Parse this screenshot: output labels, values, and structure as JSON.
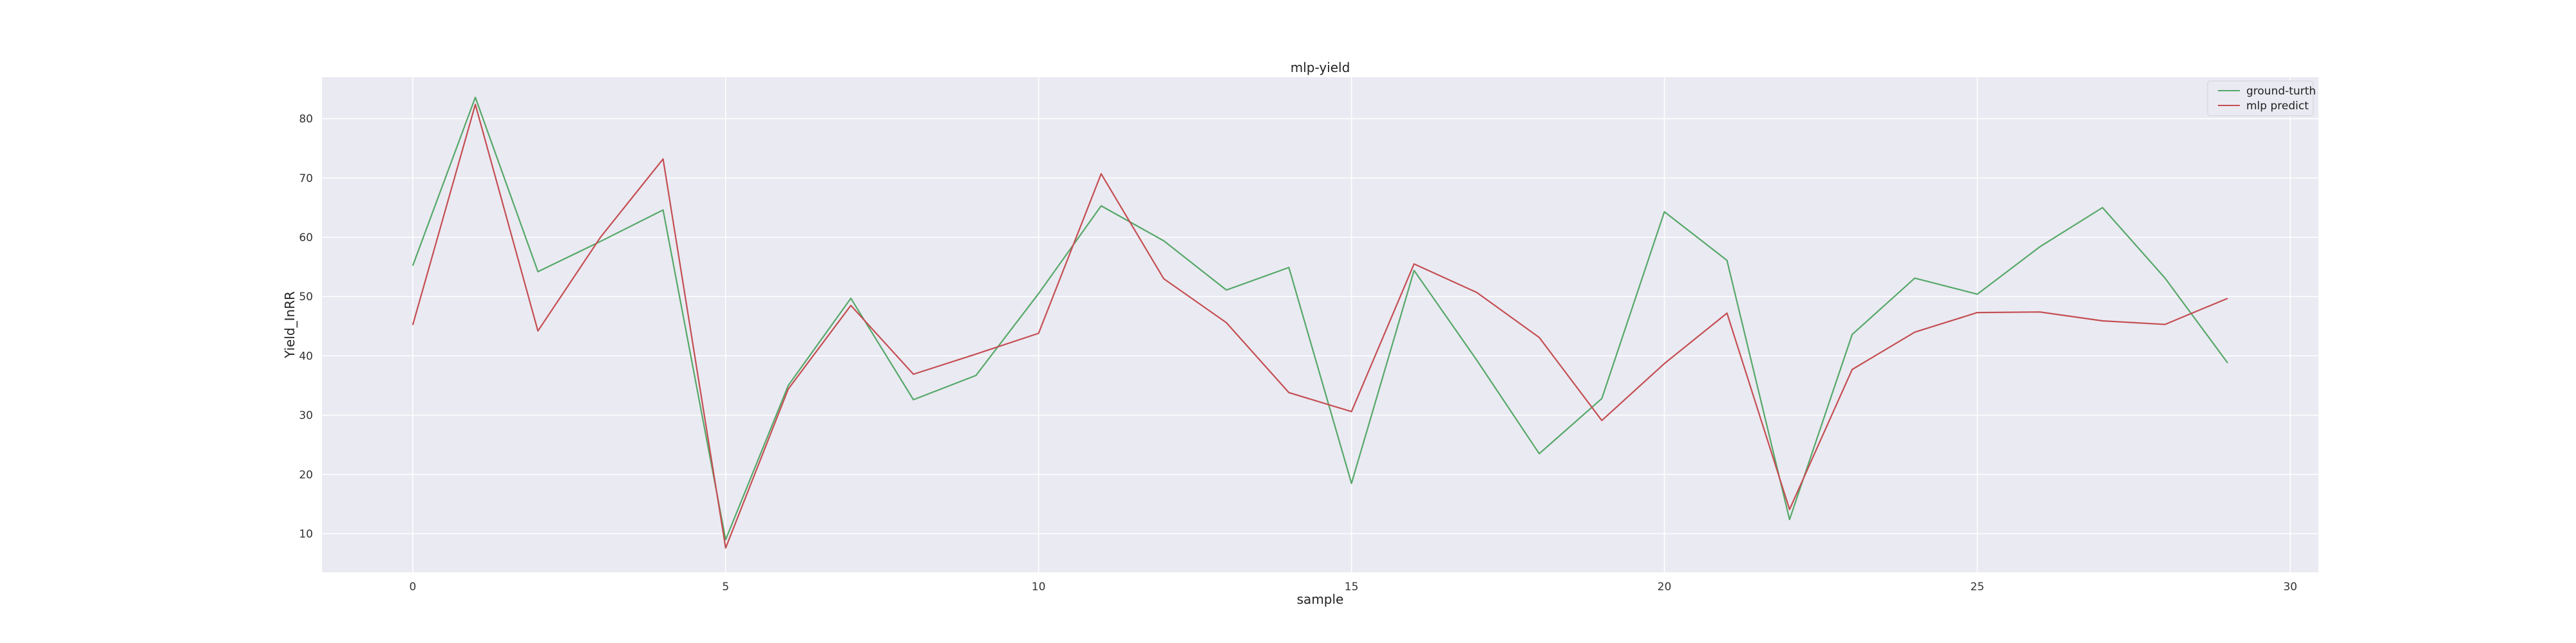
{
  "chart_data": {
    "type": "line",
    "title": "mlp-yield",
    "xlabel": "sample",
    "ylabel": "Yield_InRR",
    "xlim": [
      -1.45,
      30.45
    ],
    "ylim": [
      3.5,
      87
    ],
    "xticks": [
      0,
      5,
      10,
      15,
      20,
      25,
      30
    ],
    "yticks": [
      10,
      20,
      30,
      40,
      50,
      60,
      70,
      80
    ],
    "grid": true,
    "legend_position": "top-right",
    "x": [
      0,
      1,
      2,
      3,
      4,
      5,
      6,
      7,
      8,
      9,
      10,
      11,
      12,
      13,
      14,
      15,
      16,
      17,
      18,
      19,
      20,
      21,
      22,
      23,
      24,
      25,
      26,
      27,
      28,
      29
    ],
    "series": [
      {
        "name": "ground-turth",
        "color": "#55a868",
        "values": [
          55.2,
          83.6,
          54.2,
          59.3,
          64.6,
          9.0,
          35.0,
          49.7,
          32.6,
          36.7,
          50.5,
          65.3,
          59.4,
          51.1,
          54.9,
          18.5,
          54.4,
          39.3,
          23.5,
          32.8,
          64.3,
          56.1,
          12.4,
          43.6,
          53.1,
          50.4,
          58.4,
          65.0,
          53.1,
          38.8
        ]
      },
      {
        "name": "mlp predict",
        "color": "#c44e52",
        "values": [
          45.2,
          82.4,
          44.2,
          60.0,
          73.2,
          7.6,
          34.4,
          48.5,
          36.9,
          40.3,
          43.8,
          70.7,
          53.0,
          45.6,
          33.8,
          30.6,
          55.5,
          50.7,
          43.1,
          29.1,
          38.7,
          47.2,
          14.1,
          37.7,
          44.0,
          47.3,
          47.4,
          45.9,
          45.3,
          49.7
        ]
      }
    ]
  }
}
